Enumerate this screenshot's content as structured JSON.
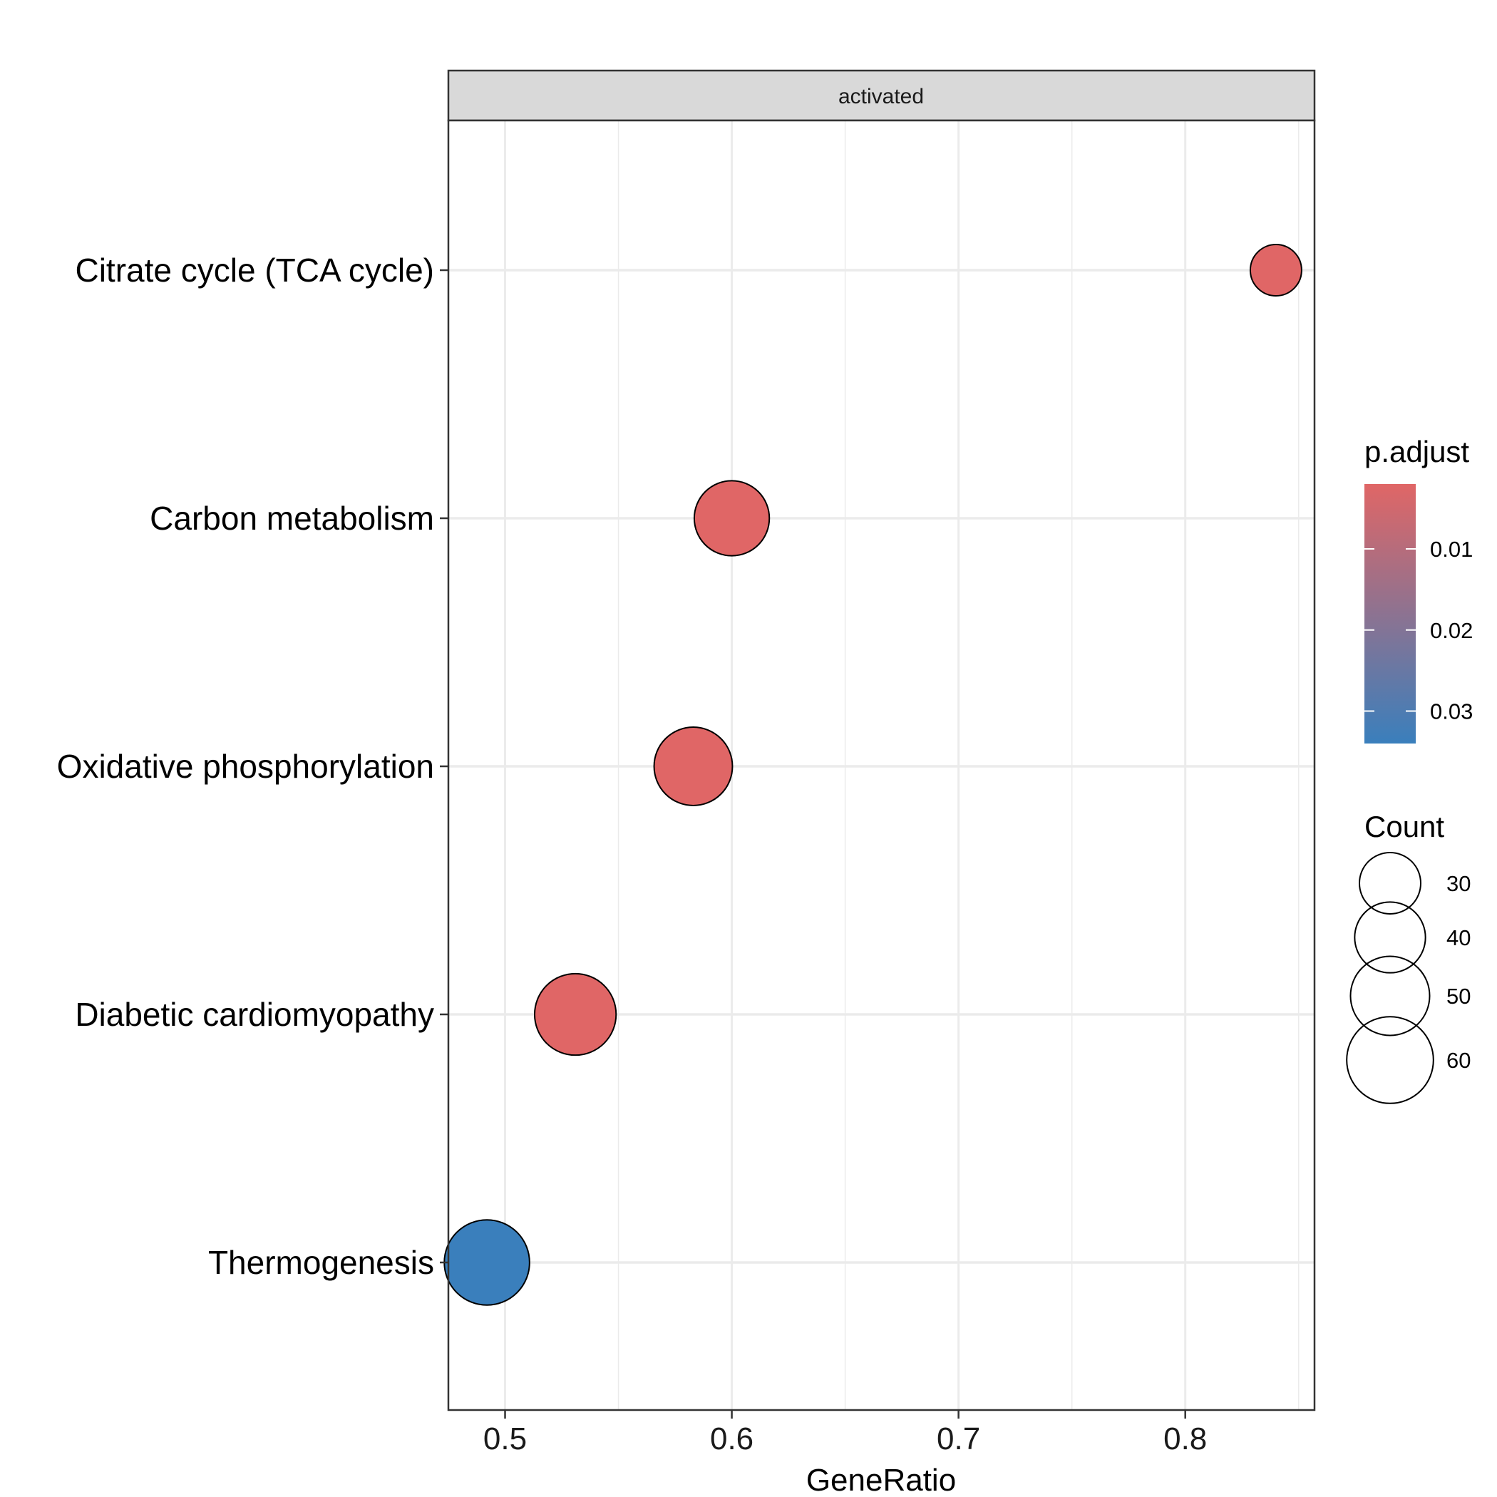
{
  "chart_data": {
    "type": "scatter",
    "facet_label": "activated",
    "xlabel": "GeneRatio",
    "ylabel": "",
    "xlim": [
      0.475,
      0.857
    ],
    "x_ticks": [
      0.5,
      0.6,
      0.7,
      0.8
    ],
    "x_tick_labels": [
      "0.5",
      "0.6",
      "0.7",
      "0.8"
    ],
    "grid": true,
    "categories": [
      "Citrate cycle (TCA cycle)",
      "Carbon metabolism",
      "Oxidative phosphorylation",
      "Diabetic cardiomyopathy",
      "Thermogenesis"
    ],
    "points": [
      {
        "category": "Citrate cycle (TCA cycle)",
        "x": 0.84,
        "count": 21,
        "p_adjust": 0.002
      },
      {
        "category": "Carbon metabolism",
        "x": 0.6,
        "count": 45,
        "p_adjust": 0.002
      },
      {
        "category": "Oxidative phosphorylation",
        "x": 0.583,
        "count": 49,
        "p_adjust": 0.002
      },
      {
        "category": "Diabetic cardiomyopathy",
        "x": 0.531,
        "count": 53,
        "p_adjust": 0.002
      },
      {
        "category": "Thermogenesis",
        "x": 0.492,
        "count": 58,
        "p_adjust": 0.034
      }
    ],
    "color_legend": {
      "title": "p.adjust",
      "range": [
        0.002,
        0.034
      ],
      "ticks": [
        0.01,
        0.02,
        0.03
      ],
      "tick_labels": [
        "0.01",
        "0.02",
        "0.03"
      ],
      "low_color": "#e06666",
      "high_color": "#3a7fbc"
    },
    "size_legend": {
      "title": "Count",
      "values": [
        30,
        40,
        50,
        60
      ],
      "labels": [
        "30",
        "40",
        "50",
        "60"
      ]
    },
    "legend_position": "right"
  }
}
